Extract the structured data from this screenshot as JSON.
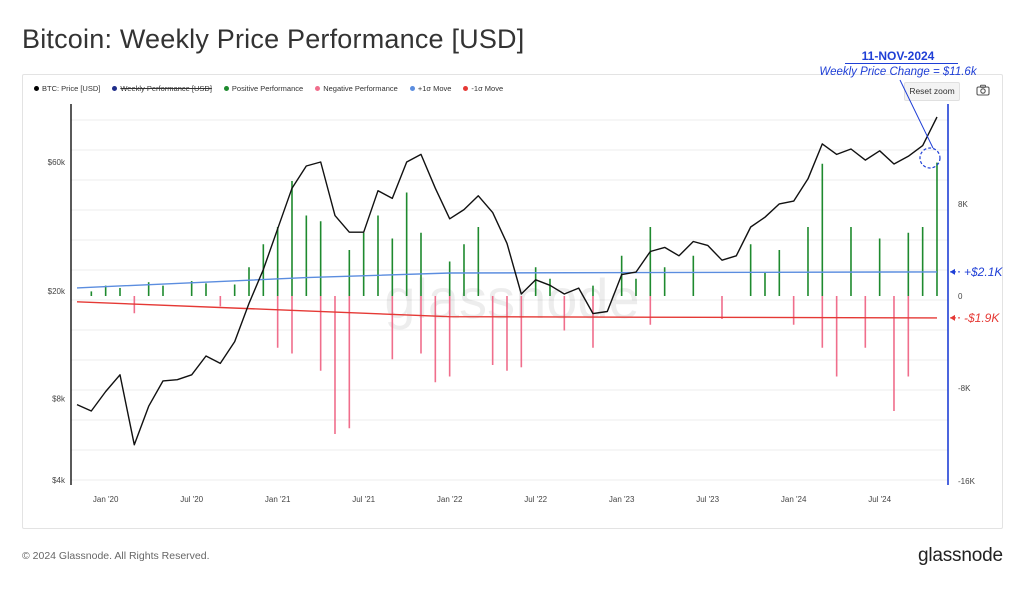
{
  "title": "Bitcoin: Weekly Price Performance [USD]",
  "legend": [
    {
      "label": "BTC: Price [USD]",
      "color": "#000000",
      "struck": false
    },
    {
      "label": "Weekly Performance [USD]",
      "color": "#1f2d8a",
      "struck": true
    },
    {
      "label": "Positive Performance",
      "color": "#1e8a2e",
      "struck": false
    },
    {
      "label": "Negative Performance",
      "color": "#f06e8c",
      "struck": false
    },
    {
      "label": "+1σ Move",
      "color": "#5b8ddf",
      "struck": false
    },
    {
      "label": "-1σ Move",
      "color": "#e53935",
      "struck": false
    }
  ],
  "toolbar": {
    "reset_label": "Reset zoom",
    "camera_icon": "camera-icon"
  },
  "annotation": {
    "date": "11-NOV-2024",
    "change": "Weekly Price Change = $11.6k",
    "plus_sigma": "+$2.1K",
    "minus_sigma": "-$1.9K"
  },
  "footer": {
    "copyright": "© 2024 Glassnode. All Rights Reserved.",
    "brand": "glassnode"
  },
  "watermark": "glassnode",
  "chart_data": {
    "type": "line",
    "x_axis": {
      "labels": [
        "Jan '20",
        "Jul '20",
        "Jan '21",
        "Jul '21",
        "Jan '22",
        "Jul '22",
        "Jan '23",
        "Jul '23",
        "Jan '24",
        "Jul '24"
      ],
      "range": [
        "2019-11",
        "2024-11"
      ]
    },
    "y_left": {
      "scale": "log",
      "ticks": [
        "$4k",
        "$8k",
        "$20k",
        "$60k"
      ],
      "values": [
        4000,
        8000,
        20000,
        60000
      ]
    },
    "y_right": {
      "ticks": [
        "8K",
        "0",
        "-8K",
        "-16K"
      ],
      "values": [
        8000,
        0,
        -8000,
        -16000
      ],
      "range": [
        -16000,
        16000
      ]
    },
    "price_series": {
      "name": "BTC: Price [USD]",
      "points": [
        [
          "2019-11",
          7600
        ],
        [
          "2019-12",
          7200
        ],
        [
          "2020-01",
          8500
        ],
        [
          "2020-02",
          9800
        ],
        [
          "2020-03",
          5400
        ],
        [
          "2020-04",
          7500
        ],
        [
          "2020-05",
          9300
        ],
        [
          "2020-06",
          9400
        ],
        [
          "2020-07",
          9800
        ],
        [
          "2020-08",
          11500
        ],
        [
          "2020-09",
          10800
        ],
        [
          "2020-10",
          13000
        ],
        [
          "2020-11",
          18000
        ],
        [
          "2020-12",
          24000
        ],
        [
          "2021-01",
          34000
        ],
        [
          "2021-02",
          48000
        ],
        [
          "2021-03",
          58000
        ],
        [
          "2021-04",
          60000
        ],
        [
          "2021-05",
          38000
        ],
        [
          "2021-06",
          33000
        ],
        [
          "2021-07",
          33000
        ],
        [
          "2021-08",
          47000
        ],
        [
          "2021-09",
          44000
        ],
        [
          "2021-10",
          60000
        ],
        [
          "2021-11",
          64000
        ],
        [
          "2021-12",
          48000
        ],
        [
          "2022-01",
          37000
        ],
        [
          "2022-02",
          40000
        ],
        [
          "2022-03",
          45000
        ],
        [
          "2022-04",
          39000
        ],
        [
          "2022-05",
          30000
        ],
        [
          "2022-06",
          19500
        ],
        [
          "2022-07",
          22000
        ],
        [
          "2022-08",
          21000
        ],
        [
          "2022-09",
          19500
        ],
        [
          "2022-10",
          20500
        ],
        [
          "2022-11",
          16500
        ],
        [
          "2022-12",
          16800
        ],
        [
          "2023-01",
          23000
        ],
        [
          "2023-02",
          23500
        ],
        [
          "2023-03",
          28000
        ],
        [
          "2023-04",
          29000
        ],
        [
          "2023-05",
          27000
        ],
        [
          "2023-06",
          30500
        ],
        [
          "2023-07",
          29500
        ],
        [
          "2023-08",
          26000
        ],
        [
          "2023-09",
          27000
        ],
        [
          "2023-10",
          34500
        ],
        [
          "2023-11",
          37500
        ],
        [
          "2023-12",
          42000
        ],
        [
          "2024-01",
          43000
        ],
        [
          "2024-02",
          52000
        ],
        [
          "2024-03",
          70000
        ],
        [
          "2024-04",
          64000
        ],
        [
          "2024-05",
          67000
        ],
        [
          "2024-06",
          61000
        ],
        [
          "2024-07",
          66000
        ],
        [
          "2024-08",
          59000
        ],
        [
          "2024-09",
          63000
        ],
        [
          "2024-10",
          69000
        ],
        [
          "2024-11",
          88000
        ]
      ]
    },
    "performance": {
      "positive": [
        [
          "2019-12",
          400
        ],
        [
          "2020-01",
          900
        ],
        [
          "2020-02",
          700
        ],
        [
          "2020-04",
          1200
        ],
        [
          "2020-05",
          900
        ],
        [
          "2020-07",
          1300
        ],
        [
          "2020-08",
          1100
        ],
        [
          "2020-10",
          1000
        ],
        [
          "2020-11",
          2500
        ],
        [
          "2020-12",
          4500
        ],
        [
          "2021-01",
          6000
        ],
        [
          "2021-02",
          10000
        ],
        [
          "2021-03",
          7000
        ],
        [
          "2021-04",
          6500
        ],
        [
          "2021-06",
          4000
        ],
        [
          "2021-07",
          5500
        ],
        [
          "2021-08",
          7000
        ],
        [
          "2021-09",
          5000
        ],
        [
          "2021-10",
          9000
        ],
        [
          "2021-11",
          5500
        ],
        [
          "2022-01",
          3000
        ],
        [
          "2022-02",
          4500
        ],
        [
          "2022-03",
          6000
        ],
        [
          "2022-07",
          2500
        ],
        [
          "2022-08",
          1500
        ],
        [
          "2022-11",
          900
        ],
        [
          "2023-01",
          3500
        ],
        [
          "2023-02",
          1500
        ],
        [
          "2023-03",
          6000
        ],
        [
          "2023-04",
          2500
        ],
        [
          "2023-06",
          3500
        ],
        [
          "2023-10",
          4500
        ],
        [
          "2023-11",
          2000
        ],
        [
          "2023-12",
          4000
        ],
        [
          "2024-02",
          6000
        ],
        [
          "2024-03",
          11500
        ],
        [
          "2024-05",
          6000
        ],
        [
          "2024-07",
          5000
        ],
        [
          "2024-09",
          5500
        ],
        [
          "2024-10",
          6000
        ],
        [
          "2024-11",
          11600
        ]
      ],
      "negative": [
        [
          "2020-03",
          -1500
        ],
        [
          "2020-09",
          -900
        ],
        [
          "2021-01",
          -4500
        ],
        [
          "2021-02",
          -5000
        ],
        [
          "2021-04",
          -6500
        ],
        [
          "2021-05",
          -12000
        ],
        [
          "2021-06",
          -11500
        ],
        [
          "2021-09",
          -5500
        ],
        [
          "2021-11",
          -5000
        ],
        [
          "2021-12",
          -7500
        ],
        [
          "2022-01",
          -7000
        ],
        [
          "2022-04",
          -6000
        ],
        [
          "2022-05",
          -6500
        ],
        [
          "2022-06",
          -6200
        ],
        [
          "2022-09",
          -3000
        ],
        [
          "2022-11",
          -4500
        ],
        [
          "2023-03",
          -2500
        ],
        [
          "2023-08",
          -2000
        ],
        [
          "2024-01",
          -2500
        ],
        [
          "2024-03",
          -4500
        ],
        [
          "2024-04",
          -7000
        ],
        [
          "2024-06",
          -4500
        ],
        [
          "2024-08",
          -10000
        ],
        [
          "2024-09",
          -7000
        ]
      ]
    },
    "plus_sigma_series": {
      "name": "+1σ Move",
      "points": [
        [
          "2019-11",
          700
        ],
        [
          "2021-03",
          1600
        ],
        [
          "2022-01",
          2000
        ],
        [
          "2024-11",
          2100
        ]
      ]
    },
    "minus_sigma_series": {
      "name": "-1σ Move",
      "points": [
        [
          "2019-11",
          -500
        ],
        [
          "2021-03",
          -1300
        ],
        [
          "2022-01",
          -1800
        ],
        [
          "2024-11",
          -1900
        ]
      ]
    },
    "grid": true,
    "legend_position": "top-left"
  }
}
